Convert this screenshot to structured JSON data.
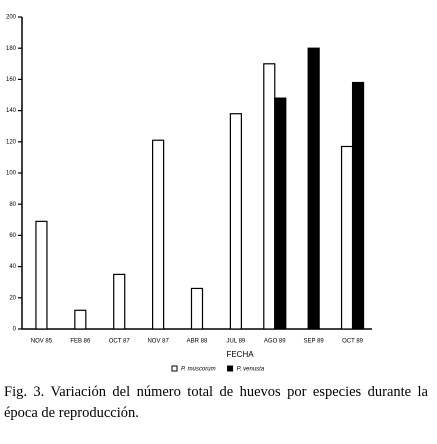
{
  "chart_data": {
    "type": "bar",
    "categories": [
      "NOV 85",
      "FEB 86",
      "OCT 87",
      "NOV 87",
      "ABR 88",
      "JUL 89",
      "AGO 89",
      "SEP 89",
      "OCT 89"
    ],
    "series": [
      {
        "name": "P. muscorum",
        "color": "#ffffff",
        "values": [
          69,
          12,
          35,
          121,
          26,
          138,
          170,
          null,
          117
        ]
      },
      {
        "name": "P. venusta",
        "color": "#000000",
        "values": [
          null,
          null,
          null,
          null,
          null,
          null,
          148,
          180,
          158
        ]
      }
    ],
    "ylim": [
      0,
      200
    ],
    "yticks": [
      0,
      20,
      40,
      60,
      80,
      100,
      120,
      140,
      160,
      180,
      200
    ],
    "x_label": "FECHA",
    "caption": "Fig. 3. Variación del número total de huevos por especies durante la época de reproducción."
  }
}
